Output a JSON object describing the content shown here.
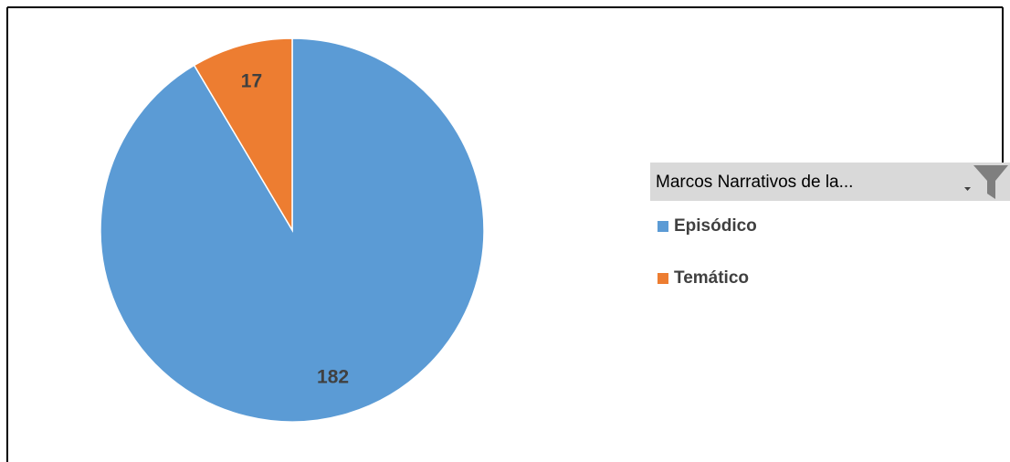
{
  "chart_data": {
    "type": "pie",
    "legend_title": "Marcos Narrativos de la...",
    "categories": [
      "Episódico",
      "Temático"
    ],
    "values": [
      182,
      17
    ],
    "colors": [
      "#5b9bd5",
      "#ed7d31"
    ]
  }
}
